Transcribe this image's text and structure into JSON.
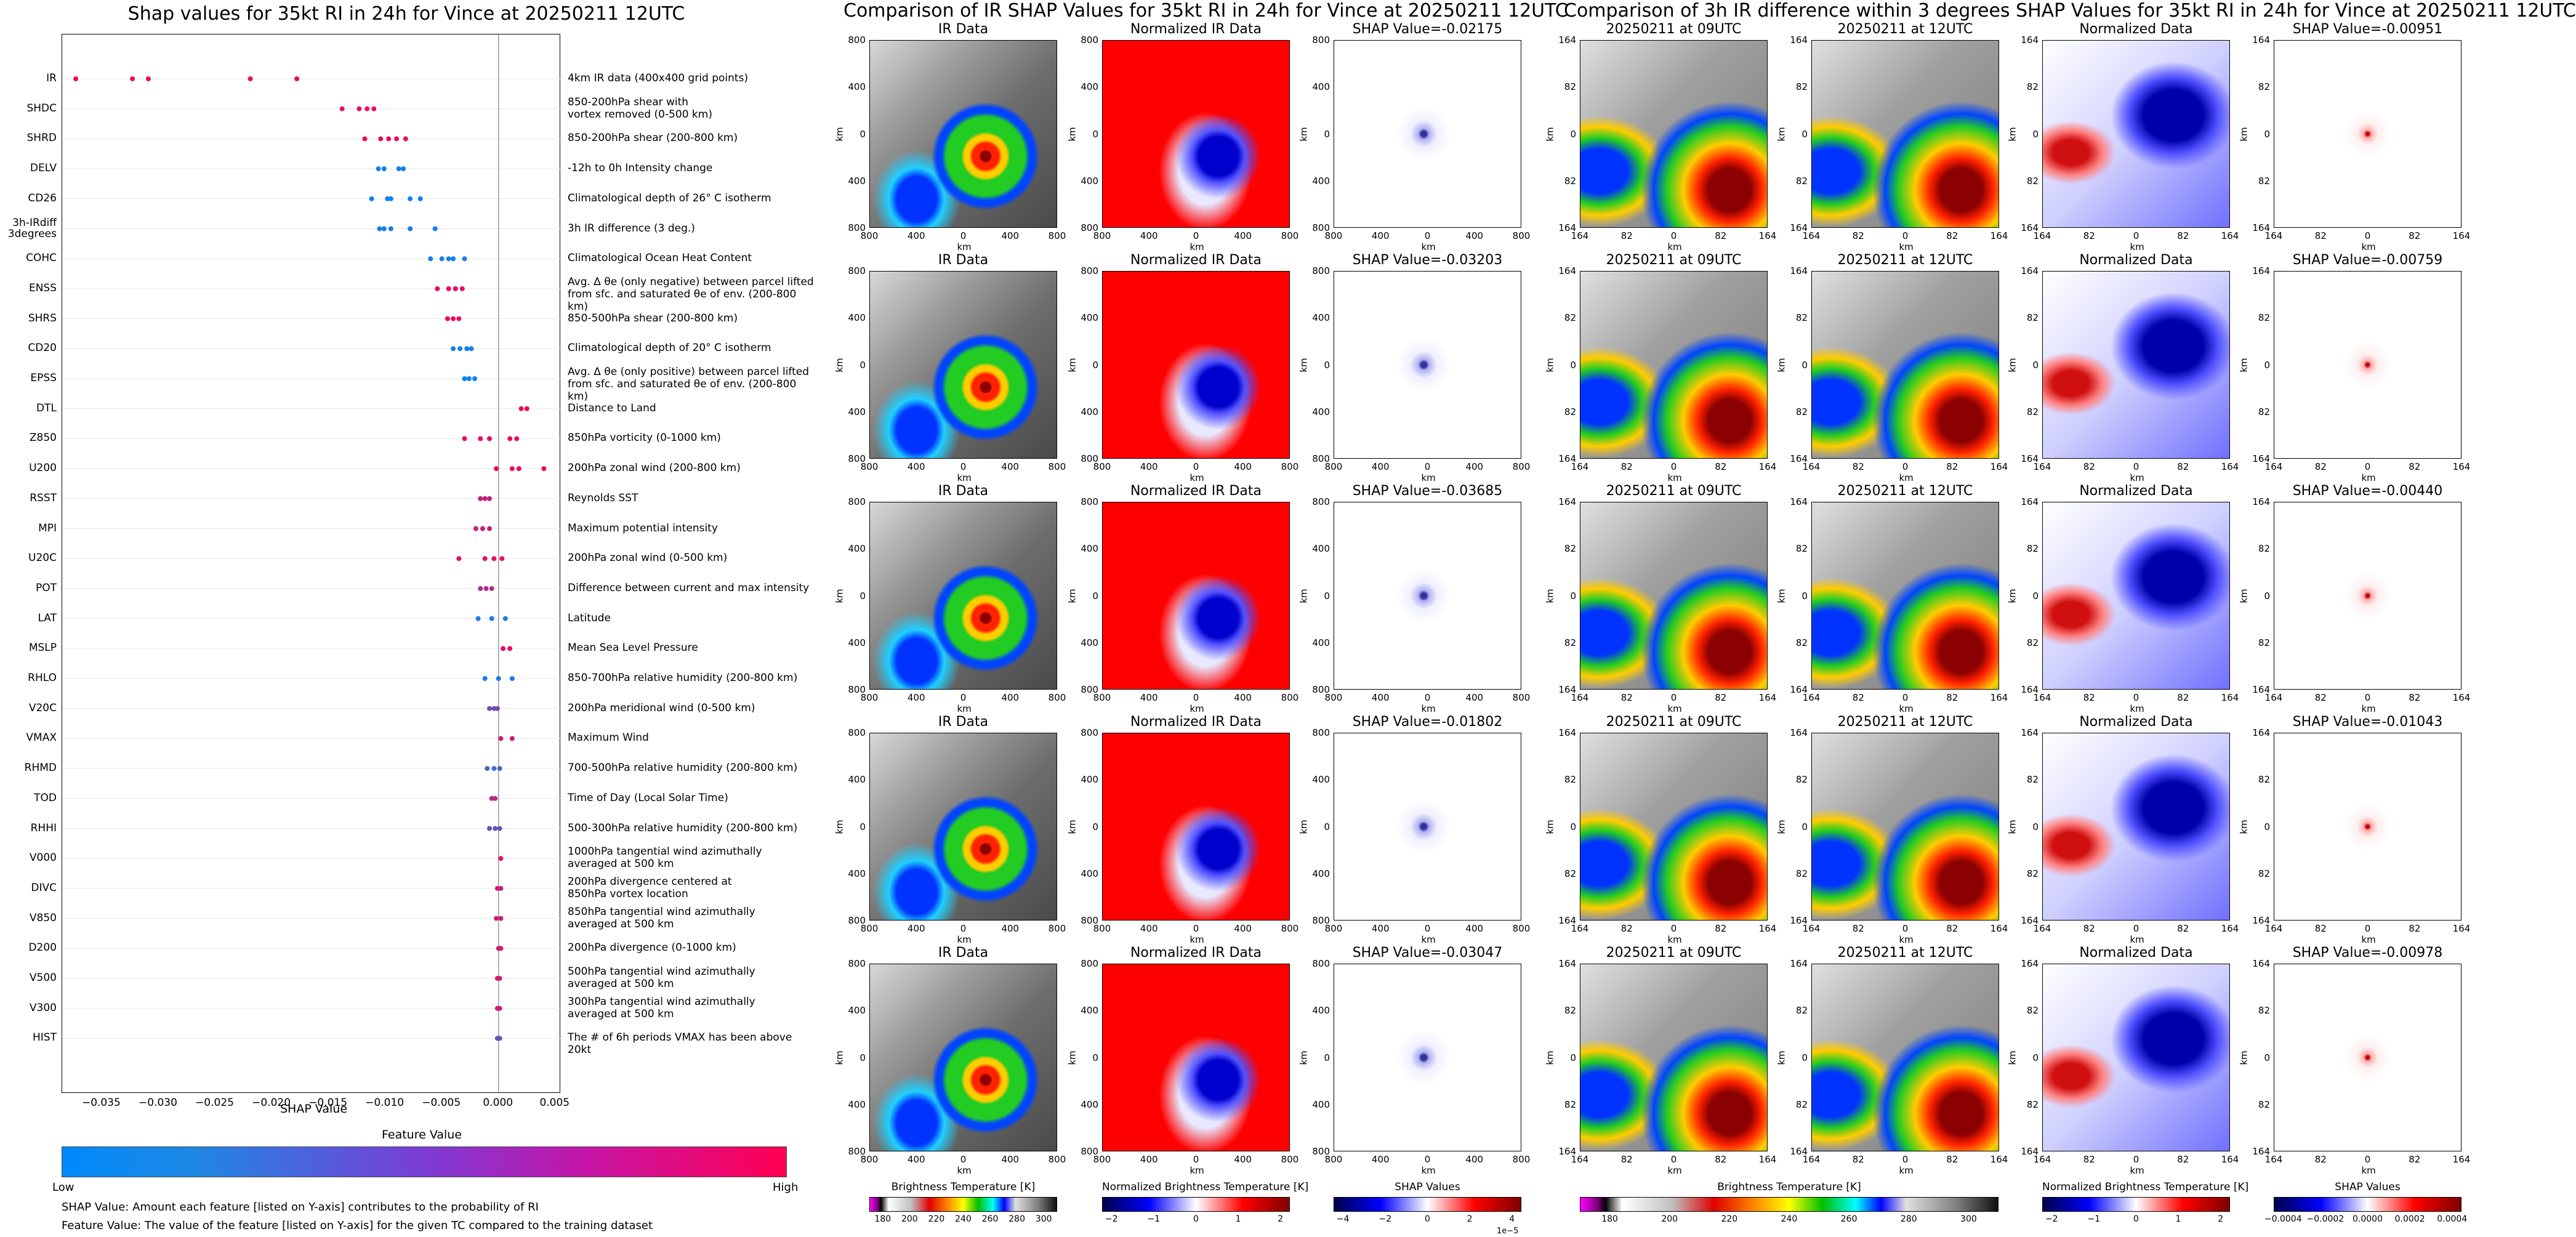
{
  "left": {
    "title": "Shap values for 35kt RI in 24h for Vince at 20250211 12UTC",
    "xlabel": "SHAP Value",
    "xticks": [
      "−0.035",
      "−0.030",
      "−0.025",
      "−0.020",
      "−0.015",
      "−0.010",
      "−0.005",
      "0.000",
      "0.005"
    ],
    "xtick_values": [
      -0.035,
      -0.03,
      -0.025,
      -0.02,
      -0.015,
      -0.01,
      -0.005,
      0.0,
      0.005
    ],
    "colorbar": {
      "title": "Feature Value",
      "low": "Low",
      "high": "High"
    },
    "note1": "SHAP Value: Amount each feature [listed on Y-axis] contributes to the probability of RI",
    "note2": "Feature Value: The value of the feature [listed on Y-axis] for the given TC compared to the training dataset",
    "features": [
      {
        "name": "IR",
        "desc": "4km IR data (400x400 grid points)"
      },
      {
        "name": "SHDC",
        "desc": "850-200hPa shear with\nvortex removed (0-500 km)"
      },
      {
        "name": "SHRD",
        "desc": "850-200hPa shear (200-800 km)"
      },
      {
        "name": "DELV",
        "desc": "-12h to 0h Intensity change"
      },
      {
        "name": "CD26",
        "desc": "Climatological depth of 26° C isotherm"
      },
      {
        "name": "3h-IRdiff\n3degrees",
        "desc": "3h IR difference (3 deg.)"
      },
      {
        "name": "COHC",
        "desc": "Climatological Ocean Heat Content"
      },
      {
        "name": "ENSS",
        "desc": "Avg. Δ θe (only negative) between parcel lifted\nfrom sfc. and saturated θe of env. (200-800 km)"
      },
      {
        "name": "SHRS",
        "desc": "850-500hPa shear (200-800 km)"
      },
      {
        "name": "CD20",
        "desc": "Climatological depth of 20° C isotherm"
      },
      {
        "name": "EPSS",
        "desc": "Avg. Δ θe (only positive) between parcel lifted\nfrom sfc. and saturated θe of env. (200-800 km)"
      },
      {
        "name": "DTL",
        "desc": "Distance to Land"
      },
      {
        "name": "Z850",
        "desc": "850hPa vorticity (0-1000 km)"
      },
      {
        "name": "U200",
        "desc": "200hPa zonal wind (200-800 km)"
      },
      {
        "name": "RSST",
        "desc": "Reynolds SST"
      },
      {
        "name": "MPI",
        "desc": "Maximum potential intensity"
      },
      {
        "name": "U20C",
        "desc": "200hPa zonal wind (0-500 km)"
      },
      {
        "name": "POT",
        "desc": "Difference between current and max intensity"
      },
      {
        "name": "LAT",
        "desc": "Latitude"
      },
      {
        "name": "MSLP",
        "desc": "Mean Sea Level Pressure"
      },
      {
        "name": "RHLO",
        "desc": "850-700hPa relative humidity (200-800 km)"
      },
      {
        "name": "V20C",
        "desc": "200hPa meridional wind (0-500 km)"
      },
      {
        "name": "VMAX",
        "desc": "Maximum Wind"
      },
      {
        "name": "RHMD",
        "desc": "700-500hPa relative humidity (200-800 km)"
      },
      {
        "name": "TOD",
        "desc": "Time of Day (Local Solar Time)"
      },
      {
        "name": "RHHI",
        "desc": "500-300hPa relative humidity (200-800 km)"
      },
      {
        "name": "V000",
        "desc": "1000hPa tangential wind azimuthally\naveraged at 500 km"
      },
      {
        "name": "DIVC",
        "desc": "200hPa divergence centered at\n850hPa vortex location"
      },
      {
        "name": "V850",
        "desc": "850hPa tangential wind azimuthally\naveraged at 500 km"
      },
      {
        "name": "D200",
        "desc": "200hPa divergence (0-1000 km)"
      },
      {
        "name": "V500",
        "desc": "500hPa tangential wind azimuthally\naveraged at 500 km"
      },
      {
        "name": "V300",
        "desc": "300hPa tangential wind azimuthally\naveraged at 500 km"
      },
      {
        "name": "HIST",
        "desc": "The # of 6h periods VMAX has been above 20kt"
      }
    ]
  },
  "chart_data": {
    "type": "scatter",
    "title": "Shap values for 35kt RI in 24h for Vince at 20250211 12UTC",
    "xlabel": "SHAP Value",
    "xlim": [
      -0.0385,
      0.0055
    ],
    "grid": false,
    "series": [
      {
        "feature": "IR",
        "values": [
          -0.0373,
          -0.0323,
          -0.0309,
          -0.0219,
          -0.0178
        ],
        "level": 0.95
      },
      {
        "feature": "SHDC",
        "values": [
          -0.0138,
          -0.0123,
          -0.0116,
          -0.011
        ],
        "level": 0.92
      },
      {
        "feature": "SHRD",
        "values": [
          -0.0118,
          -0.0104,
          -0.0097,
          -0.009,
          -0.0082
        ],
        "level": 0.93
      },
      {
        "feature": "DELV",
        "values": [
          -0.0106,
          -0.0101,
          -0.0088,
          -0.0084
        ],
        "level": 0.08
      },
      {
        "feature": "CD26",
        "values": [
          -0.0112,
          -0.0098,
          -0.0095,
          -0.0078,
          -0.0069
        ],
        "level": 0.06
      },
      {
        "feature": "3h-IRdiff\n3degrees",
        "values": [
          -0.0105,
          -0.0101,
          -0.0095,
          -0.0078,
          -0.0056
        ],
        "level": 0.1
      },
      {
        "feature": "COHC",
        "values": [
          -0.006,
          -0.005,
          -0.0044,
          -0.004,
          -0.003
        ],
        "level": 0.08
      },
      {
        "feature": "ENSS",
        "values": [
          -0.0054,
          -0.0044,
          -0.0038,
          -0.0032
        ],
        "level": 0.92
      },
      {
        "feature": "SHRS",
        "values": [
          -0.0045,
          -0.004,
          -0.0035
        ],
        "level": 0.93
      },
      {
        "feature": "CD20",
        "values": [
          -0.004,
          -0.0034,
          -0.0028,
          -0.0024
        ],
        "level": 0.07
      },
      {
        "feature": "EPSS",
        "values": [
          -0.003,
          -0.0026,
          -0.0021
        ],
        "level": 0.06
      },
      {
        "feature": "DTL",
        "values": [
          0.002,
          0.0025
        ],
        "level": 0.95
      },
      {
        "feature": "Z850",
        "values": [
          -0.003,
          -0.0016,
          -0.0008,
          0.001,
          0.0016
        ],
        "level": 0.92
      },
      {
        "feature": "U200",
        "values": [
          -0.0002,
          0.0012,
          0.0018,
          0.004
        ],
        "level": 0.93
      },
      {
        "feature": "RSST",
        "values": [
          -0.0016,
          -0.0012,
          -0.0008
        ],
        "level": 0.75
      },
      {
        "feature": "MPI",
        "values": [
          -0.002,
          -0.0014,
          -0.0008
        ],
        "level": 0.78
      },
      {
        "feature": "U20C",
        "values": [
          -0.0035,
          -0.0012,
          -0.0004,
          0.0003
        ],
        "level": 0.9
      },
      {
        "feature": "POT",
        "values": [
          -0.0016,
          -0.0011,
          -0.0006
        ],
        "level": 0.7
      },
      {
        "feature": "LAT",
        "values": [
          -0.0018,
          -0.0006,
          0.0006
        ],
        "level": 0.1
      },
      {
        "feature": "MSLP",
        "values": [
          0.0004,
          0.001
        ],
        "level": 0.9
      },
      {
        "feature": "RHLO",
        "values": [
          -0.0012,
          0.0,
          0.0012
        ],
        "level": 0.1
      },
      {
        "feature": "V20C",
        "values": [
          -0.0008,
          -0.0004,
          -0.0001
        ],
        "level": 0.45
      },
      {
        "feature": "VMAX",
        "values": [
          0.0002,
          0.0012
        ],
        "level": 0.8
      },
      {
        "feature": "RHMD",
        "values": [
          -0.001,
          -0.0004,
          0.0001
        ],
        "level": 0.25
      },
      {
        "feature": "TOD",
        "values": [
          -0.0006,
          -0.0003
        ],
        "level": 0.7
      },
      {
        "feature": "RHHI",
        "values": [
          -0.0008,
          -0.0003,
          0.0001
        ],
        "level": 0.4
      },
      {
        "feature": "V000",
        "values": [
          0.0002
        ],
        "level": 0.85
      },
      {
        "feature": "DIVC",
        "values": [
          -0.0001,
          0.0002
        ],
        "level": 0.8
      },
      {
        "feature": "V850",
        "values": [
          -0.0002,
          0.0002
        ],
        "level": 0.8
      },
      {
        "feature": "D200",
        "values": [
          0.0,
          0.0002
        ],
        "level": 0.8
      },
      {
        "feature": "V500",
        "values": [
          -0.0001,
          0.0001
        ],
        "level": 0.8
      },
      {
        "feature": "V300",
        "values": [
          -0.0001,
          0.0001
        ],
        "level": 0.8
      },
      {
        "feature": "HIST",
        "values": [
          -0.0001,
          0.0001
        ],
        "level": 0.4
      }
    ]
  },
  "middle": {
    "title": "Comparison of IR SHAP Values for 35kt RI in 24h for Vince at 20250211 12UTC",
    "col_titles": [
      "IR Data",
      "Normalized IR Data"
    ],
    "shap_titles": [
      "SHAP Value=-0.02175",
      "SHAP Value=-0.03203",
      "SHAP Value=-0.03685",
      "SHAP Value=-0.01802",
      "SHAP Value=-0.03047"
    ],
    "yticks": [
      "800",
      "400",
      "0",
      "400",
      "800"
    ],
    "xticks": [
      "800",
      "400",
      "0",
      "400",
      "800"
    ],
    "axis_unit": "km",
    "cb_ir": {
      "label": "Brightness Temperature [K]",
      "ticks": [
        "180",
        "200",
        "220",
        "240",
        "260",
        "280",
        "300"
      ]
    },
    "cb_norm": {
      "label": "Normalized Brightness Temperature [K]",
      "ticks": [
        "−2",
        "−1",
        "0",
        "1",
        "2"
      ]
    },
    "cb_shap": {
      "label": "SHAP Values",
      "ticks": [
        "−4",
        "−2",
        "0",
        "2",
        "4"
      ],
      "exponent": "1e−5"
    }
  },
  "right": {
    "title": "Comparison of 3h IR difference within 3 degrees SHAP Values for 35kt RI in 24h for Vince at 20250211 12UTC",
    "col_titles": [
      "20250211 at 09UTC",
      "20250211 at 12UTC",
      "Normalized Data"
    ],
    "shap_titles": [
      "SHAP Value=-0.00951",
      "SHAP Value=-0.00759",
      "SHAP Value=-0.00440",
      "SHAP Value=-0.01043",
      "SHAP Value=-0.00978"
    ],
    "yticks": [
      "164",
      "82",
      "0",
      "82",
      "164"
    ],
    "xticks": [
      "164",
      "82",
      "0",
      "82",
      "164"
    ],
    "axis_unit": "km",
    "cb_ir": {
      "label": "Brightness Temperature [K]",
      "ticks": [
        "180",
        "200",
        "220",
        "240",
        "260",
        "280",
        "300"
      ]
    },
    "cb_norm": {
      "label": "Normalized Brightness Temperature [K]",
      "ticks": [
        "−2",
        "−1",
        "0",
        "1",
        "2"
      ]
    },
    "cb_shap": {
      "label": "SHAP Values",
      "ticks": [
        "−0.0004",
        "−0.0002",
        "0.0000",
        "0.0002",
        "0.0004"
      ]
    }
  },
  "colors": {
    "low": "#1e88e5",
    "high": "#ff0d57",
    "bwr_low": "#0000cc",
    "bwr_high": "#cc0000"
  }
}
